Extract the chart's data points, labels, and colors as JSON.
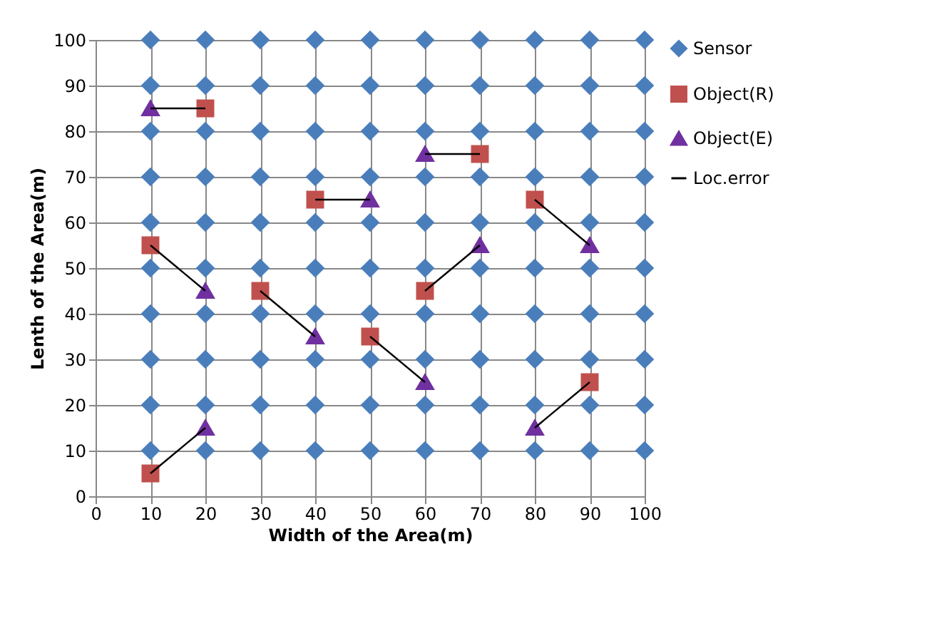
{
  "chart_data": {
    "type": "scatter",
    "xlabel": "Width of the Area(m)",
    "ylabel": "Lenth of the Area(m)",
    "xlim": [
      0,
      100
    ],
    "xticks": [
      0,
      10,
      20,
      30,
      40,
      50,
      60,
      70,
      80,
      90,
      100
    ],
    "ylim": [
      0,
      100
    ],
    "yticks": [
      0,
      10,
      20,
      30,
      40,
      50,
      60,
      70,
      80,
      90,
      100
    ],
    "grid": true,
    "legend": "right",
    "series": [
      {
        "name": "Sensor",
        "marker": "diamond",
        "color": "#4a7ebb",
        "x": [
          10,
          20,
          30,
          40,
          50,
          60,
          70,
          80,
          90,
          100,
          10,
          20,
          30,
          40,
          50,
          60,
          70,
          80,
          90,
          100,
          10,
          20,
          30,
          40,
          50,
          60,
          70,
          80,
          90,
          100,
          10,
          20,
          30,
          40,
          50,
          60,
          70,
          80,
          90,
          100,
          10,
          20,
          30,
          40,
          50,
          60,
          70,
          80,
          90,
          100,
          10,
          20,
          30,
          40,
          50,
          60,
          70,
          80,
          90,
          100,
          10,
          20,
          30,
          40,
          50,
          60,
          70,
          80,
          90,
          100,
          10,
          20,
          30,
          40,
          50,
          60,
          70,
          80,
          90,
          100,
          10,
          20,
          30,
          40,
          50,
          60,
          70,
          80,
          90,
          100,
          10,
          20,
          30,
          40,
          50,
          60,
          70,
          80,
          90,
          100
        ],
        "values": [
          10,
          10,
          10,
          10,
          10,
          10,
          10,
          10,
          10,
          10,
          20,
          20,
          20,
          20,
          20,
          20,
          20,
          20,
          20,
          20,
          30,
          30,
          30,
          30,
          30,
          30,
          30,
          30,
          30,
          30,
          40,
          40,
          40,
          40,
          40,
          40,
          40,
          40,
          40,
          40,
          50,
          50,
          50,
          50,
          50,
          50,
          50,
          50,
          50,
          50,
          60,
          60,
          60,
          60,
          60,
          60,
          60,
          60,
          60,
          60,
          70,
          70,
          70,
          70,
          70,
          70,
          70,
          70,
          70,
          70,
          80,
          80,
          80,
          80,
          80,
          80,
          80,
          80,
          80,
          80,
          90,
          90,
          90,
          90,
          90,
          90,
          90,
          90,
          90,
          90,
          100,
          100,
          100,
          100,
          100,
          100,
          100,
          100,
          100,
          100
        ]
      },
      {
        "name": "Object(R)",
        "marker": "square",
        "color": "#c0504d",
        "x": [
          10,
          20,
          10,
          30,
          40,
          50,
          60,
          70,
          80,
          90
        ],
        "values": [
          5,
          85,
          55,
          45,
          65,
          35,
          45,
          75,
          65,
          25
        ]
      },
      {
        "name": "Object(E)",
        "marker": "triangle",
        "color": "#7030a0",
        "x": [
          20,
          10,
          20,
          40,
          50,
          60,
          70,
          60,
          90,
          80
        ],
        "values": [
          15,
          85,
          45,
          35,
          65,
          25,
          55,
          75,
          55,
          15
        ]
      },
      {
        "name": "Loc.error",
        "type": "line",
        "marker": "none",
        "line_style": "solid",
        "color": "#000000",
        "x": [
          10,
          20
        ],
        "values": [
          5,
          15
        ]
      },
      {
        "type": "line",
        "marker": "none",
        "line_style": "solid",
        "color": "#000000",
        "x": [
          20,
          10
        ],
        "values": [
          85,
          85
        ]
      },
      {
        "type": "line",
        "marker": "none",
        "line_style": "solid",
        "color": "#000000",
        "x": [
          10,
          20
        ],
        "values": [
          55,
          45
        ]
      },
      {
        "type": "line",
        "marker": "none",
        "line_style": "solid",
        "color": "#000000",
        "x": [
          30,
          40
        ],
        "values": [
          45,
          35
        ]
      },
      {
        "type": "line",
        "marker": "none",
        "line_style": "solid",
        "color": "#000000",
        "x": [
          40,
          50
        ],
        "values": [
          65,
          65
        ]
      },
      {
        "type": "line",
        "marker": "none",
        "line_style": "solid",
        "color": "#000000",
        "x": [
          50,
          60
        ],
        "values": [
          35,
          25
        ]
      },
      {
        "type": "line",
        "marker": "none",
        "line_style": "solid",
        "color": "#000000",
        "x": [
          60,
          70
        ],
        "values": [
          45,
          55
        ]
      },
      {
        "type": "line",
        "marker": "none",
        "line_style": "solid",
        "color": "#000000",
        "x": [
          70,
          60
        ],
        "values": [
          75,
          75
        ]
      },
      {
        "type": "line",
        "marker": "none",
        "line_style": "solid",
        "color": "#000000",
        "x": [
          80,
          90
        ],
        "values": [
          65,
          55
        ]
      },
      {
        "type": "line",
        "marker": "none",
        "line_style": "solid",
        "color": "#000000",
        "x": [
          90,
          80
        ],
        "values": [
          25,
          15
        ]
      }
    ]
  }
}
